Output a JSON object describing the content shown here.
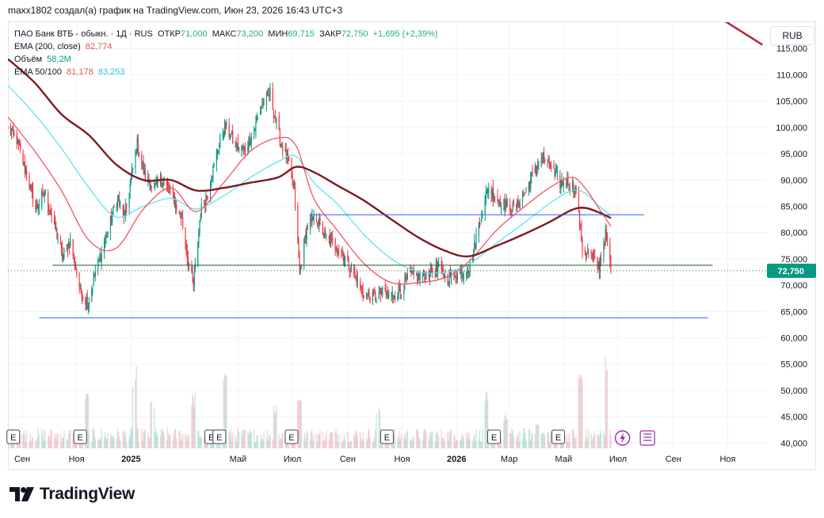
{
  "header": {
    "text": "maxx1802 создал(а) график на TradingView.com, Июн 23, 2026 16:43 UTC+3"
  },
  "legend": {
    "symbol": "ПАО Банк ВТБ - обыкн. · 1Д · RUS",
    "open_label": "ОТКР",
    "open_value": "71,000",
    "high_label": "МАКС",
    "high_value": "73,200",
    "low_label": "МИН",
    "low_value": "69,715",
    "close_label": "ЗАКР",
    "close_value": "72,750",
    "change": "+1,695 (+2,39%)",
    "ema200_label": "EMA (200, close)",
    "ema200_value": "82,774",
    "volume_label": "Объём",
    "volume_value": "58,2M",
    "ema50100_label": "EMA 50/100",
    "ema50_value": "81,178",
    "ema100_value": "83,253"
  },
  "currency_button": "RUB",
  "last_price_label": "72,750",
  "earnings_marker": "E",
  "brand": {
    "name": "TradingView"
  },
  "colors": {
    "up": "#089981",
    "down": "#f23645",
    "ema200": "#801922",
    "ema50": "#f7525f",
    "ema100": "#5fe4f0",
    "hline_blue": "#2962ff",
    "hline_green": "#1b5e20",
    "trend": "#b22833"
  },
  "chart_data": {
    "type": "candlestick",
    "y_axis": {
      "min": 39000,
      "max": 120000,
      "position": "right",
      "ticks": [
        40000,
        45000,
        50000,
        55000,
        60000,
        65000,
        70000,
        75000,
        80000,
        85000,
        90000,
        95000,
        100000,
        105000,
        110000,
        115000
      ],
      "tick_labels": [
        "40,000",
        "45,000",
        "50,000",
        "55,000",
        "60,000",
        "65,000",
        "70,000",
        "75,000",
        "80,000",
        "85,000",
        "90,000",
        "95,000",
        "100,000",
        "105,000",
        "110,000",
        "115,000"
      ]
    },
    "x_axis": {
      "start": "2024-08-16",
      "end": "2026-12-15",
      "ticks": [
        {
          "label": "Сен",
          "date": "2024-09-01",
          "bold": false
        },
        {
          "label": "Ноя",
          "date": "2024-11-01",
          "bold": false
        },
        {
          "label": "2025",
          "date": "2025-01-01",
          "bold": true
        },
        {
          "label": "Май",
          "date": "2025-05-01",
          "bold": false
        },
        {
          "label": "Июл",
          "date": "2025-07-01",
          "bold": false
        },
        {
          "label": "Сен",
          "date": "2025-09-01",
          "bold": false
        },
        {
          "label": "Ноя",
          "date": "2025-11-01",
          "bold": false
        },
        {
          "label": "2026",
          "date": "2026-01-01",
          "bold": true
        },
        {
          "label": "Мар",
          "date": "2026-03-01",
          "bold": false
        },
        {
          "label": "Май",
          "date": "2026-05-01",
          "bold": false
        },
        {
          "label": "Июл",
          "date": "2026-07-01",
          "bold": false
        },
        {
          "label": "Сен",
          "date": "2026-09-01",
          "bold": false
        },
        {
          "label": "Ноя",
          "date": "2026-11-01",
          "bold": false
        }
      ]
    },
    "close_path": [
      [
        "2024-08-16",
        99500
      ],
      [
        "2024-08-26",
        97500
      ],
      [
        "2024-09-05",
        91500
      ],
      [
        "2024-09-16",
        84500
      ],
      [
        "2024-09-26",
        87500
      ],
      [
        "2024-10-07",
        81500
      ],
      [
        "2024-10-16",
        75500
      ],
      [
        "2024-10-25",
        78500
      ],
      [
        "2024-11-05",
        69000
      ],
      [
        "2024-11-14",
        66500
      ],
      [
        "2024-11-22",
        72500
      ],
      [
        "2024-12-04",
        79000
      ],
      [
        "2024-12-16",
        86500
      ],
      [
        "2024-12-25",
        83000
      ],
      [
        "2025-01-08",
        97000
      ],
      [
        "2025-01-17",
        90500
      ],
      [
        "2025-01-27",
        88500
      ],
      [
        "2025-02-06",
        90000
      ],
      [
        "2025-02-17",
        86500
      ],
      [
        "2025-02-27",
        82500
      ],
      [
        "2025-03-06",
        74500
      ],
      [
        "2025-03-12",
        70000
      ],
      [
        "2025-03-20",
        84000
      ],
      [
        "2025-03-28",
        87500
      ],
      [
        "2025-04-07",
        95000
      ],
      [
        "2025-04-16",
        100500
      ],
      [
        "2025-04-28",
        96500
      ],
      [
        "2025-05-08",
        95500
      ],
      [
        "2025-05-19",
        99500
      ],
      [
        "2025-05-28",
        104500
      ],
      [
        "2025-06-06",
        106500
      ],
      [
        "2025-06-17",
        97500
      ],
      [
        "2025-06-26",
        93500
      ],
      [
        "2025-07-03",
        87500
      ],
      [
        "2025-07-09",
        72500
      ],
      [
        "2025-07-17",
        81000
      ],
      [
        "2025-07-28",
        83000
      ],
      [
        "2025-08-07",
        79000
      ],
      [
        "2025-08-18",
        77500
      ],
      [
        "2025-08-28",
        75500
      ],
      [
        "2025-09-08",
        72000
      ],
      [
        "2025-09-18",
        68500
      ],
      [
        "2025-09-29",
        67500
      ],
      [
        "2025-10-09",
        68500
      ],
      [
        "2025-10-20",
        68000
      ],
      [
        "2025-10-30",
        69000
      ],
      [
        "2025-11-10",
        72000
      ],
      [
        "2025-11-20",
        71500
      ],
      [
        "2025-12-02",
        72500
      ],
      [
        "2025-12-12",
        73000
      ],
      [
        "2025-12-22",
        71500
      ],
      [
        "2026-01-08",
        72500
      ],
      [
        "2026-01-16",
        73500
      ],
      [
        "2026-01-26",
        81500
      ],
      [
        "2026-02-05",
        88500
      ],
      [
        "2026-02-16",
        86500
      ],
      [
        "2026-02-26",
        85000
      ],
      [
        "2026-03-06",
        84500
      ],
      [
        "2026-03-16",
        86500
      ],
      [
        "2026-03-26",
        90500
      ],
      [
        "2026-04-06",
        94500
      ],
      [
        "2026-04-16",
        92500
      ],
      [
        "2026-04-27",
        89500
      ],
      [
        "2026-05-07",
        89500
      ],
      [
        "2026-05-15",
        88000
      ],
      [
        "2026-05-22",
        77000
      ],
      [
        "2026-06-01",
        75500
      ],
      [
        "2026-06-10",
        73500
      ],
      [
        "2026-06-17",
        79500
      ],
      [
        "2026-06-23",
        72750
      ]
    ],
    "ema200_path": [
      [
        "2024-08-16",
        113000
      ],
      [
        "2024-09-15",
        108500
      ],
      [
        "2024-10-15",
        102500
      ],
      [
        "2024-11-15",
        98500
      ],
      [
        "2024-12-15",
        93000
      ],
      [
        "2025-01-15",
        90000
      ],
      [
        "2025-02-15",
        90000
      ],
      [
        "2025-03-15",
        88000
      ],
      [
        "2025-04-15",
        88500
      ],
      [
        "2025-05-15",
        89500
      ],
      [
        "2025-06-15",
        90500
      ],
      [
        "2025-07-05",
        92500
      ],
      [
        "2025-07-25",
        91500
      ],
      [
        "2025-08-20",
        89000
      ],
      [
        "2025-09-20",
        86000
      ],
      [
        "2025-10-20",
        82500
      ],
      [
        "2025-11-20",
        79000
      ],
      [
        "2025-12-20",
        76500
      ],
      [
        "2026-01-15",
        75500
      ],
      [
        "2026-02-15",
        77500
      ],
      [
        "2026-03-15",
        79500
      ],
      [
        "2026-04-15",
        82000
      ],
      [
        "2026-05-10",
        84300
      ],
      [
        "2026-05-25",
        84700
      ],
      [
        "2026-06-10",
        83800
      ],
      [
        "2026-06-23",
        82774
      ]
    ],
    "ema50_path": [
      [
        "2024-08-16",
        102000
      ],
      [
        "2024-09-15",
        95500
      ],
      [
        "2024-10-15",
        88000
      ],
      [
        "2024-11-15",
        78500
      ],
      [
        "2024-12-15",
        77000
      ],
      [
        "2025-01-15",
        84500
      ],
      [
        "2025-02-15",
        88500
      ],
      [
        "2025-03-15",
        84000
      ],
      [
        "2025-04-15",
        89500
      ],
      [
        "2025-05-15",
        95500
      ],
      [
        "2025-06-15",
        98000
      ],
      [
        "2025-07-05",
        96500
      ],
      [
        "2025-07-25",
        86500
      ],
      [
        "2025-08-20",
        80500
      ],
      [
        "2025-09-20",
        74000
      ],
      [
        "2025-10-20",
        70500
      ],
      [
        "2025-11-20",
        70500
      ],
      [
        "2025-12-20",
        71500
      ],
      [
        "2026-01-15",
        74500
      ],
      [
        "2026-02-15",
        80500
      ],
      [
        "2026-03-15",
        84500
      ],
      [
        "2026-04-15",
        88500
      ],
      [
        "2026-05-10",
        90500
      ],
      [
        "2026-05-25",
        88500
      ],
      [
        "2026-06-10",
        84500
      ],
      [
        "2026-06-23",
        81178
      ]
    ],
    "ema100_path": [
      [
        "2024-08-16",
        108000
      ],
      [
        "2024-09-15",
        102500
      ],
      [
        "2024-10-15",
        96000
      ],
      [
        "2024-11-15",
        88500
      ],
      [
        "2024-12-15",
        83000
      ],
      [
        "2025-01-15",
        85000
      ],
      [
        "2025-02-15",
        86500
      ],
      [
        "2025-03-15",
        84500
      ],
      [
        "2025-04-15",
        87000
      ],
      [
        "2025-05-15",
        90500
      ],
      [
        "2025-06-15",
        93500
      ],
      [
        "2025-07-05",
        94500
      ],
      [
        "2025-07-25",
        89500
      ],
      [
        "2025-08-20",
        85500
      ],
      [
        "2025-09-20",
        79500
      ],
      [
        "2025-10-20",
        75000
      ],
      [
        "2025-11-20",
        72500
      ],
      [
        "2025-12-20",
        72500
      ],
      [
        "2026-01-15",
        74000
      ],
      [
        "2026-02-15",
        78000
      ],
      [
        "2026-03-15",
        81500
      ],
      [
        "2026-04-15",
        85500
      ],
      [
        "2026-05-10",
        88000
      ],
      [
        "2026-05-25",
        87500
      ],
      [
        "2026-06-10",
        85000
      ],
      [
        "2026-06-23",
        83253
      ]
    ],
    "volume_spikes": [
      [
        "2024-11-12",
        0.55
      ],
      [
        "2025-01-05",
        0.8
      ],
      [
        "2025-01-25",
        0.5
      ],
      [
        "2025-03-12",
        0.55
      ],
      [
        "2025-04-17",
        0.9
      ],
      [
        "2025-06-12",
        0.45
      ],
      [
        "2025-07-09",
        0.65
      ],
      [
        "2025-10-05",
        0.45
      ],
      [
        "2026-02-03",
        0.55
      ],
      [
        "2026-02-25",
        0.35
      ],
      [
        "2026-04-02",
        0.3
      ],
      [
        "2026-05-20",
        0.8
      ],
      [
        "2026-06-19",
        0.95
      ]
    ],
    "horizontal_lines": [
      {
        "price": 83400,
        "from": "2025-07-20",
        "to": "2026-07-30",
        "color": "#2962ff"
      },
      {
        "price": 73800,
        "from": "2024-10-05",
        "to": "2026-10-15",
        "color": "#1b5e20"
      },
      {
        "price": 63800,
        "from": "2024-09-20",
        "to": "2026-10-10",
        "color": "#2962ff"
      }
    ],
    "trend_line": {
      "from": [
        "2026-09-14",
        125000
      ],
      "to": [
        "2026-12-10",
        115700
      ],
      "color": "#b22833"
    },
    "last_price": 72750,
    "earnings_dates": [
      "2024-08-22",
      "2024-11-05",
      "2025-04-01",
      "2025-04-10",
      "2025-06-30",
      "2025-10-15",
      "2026-02-12",
      "2026-04-25"
    ],
    "dividend_date": "2026-07-06",
    "split_date": "2026-08-03"
  }
}
